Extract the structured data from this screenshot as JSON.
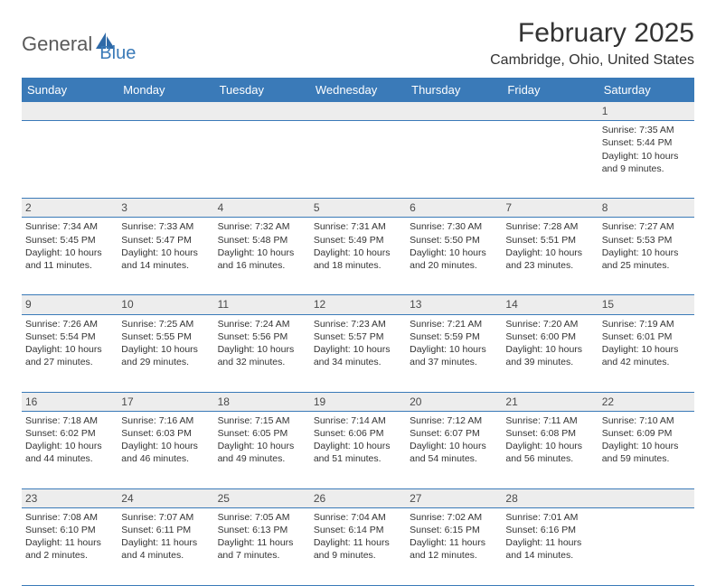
{
  "logo": {
    "word1": "General",
    "word2": "Blue",
    "icon_color": "#2f6aa8"
  },
  "header": {
    "title": "February 2025",
    "location": "Cambridge, Ohio, United States"
  },
  "colors": {
    "header_bg": "#3a7ab8",
    "daynum_bg": "#ededed",
    "rule": "#3a7ab8",
    "text": "#333333"
  },
  "weekdays": [
    "Sunday",
    "Monday",
    "Tuesday",
    "Wednesday",
    "Thursday",
    "Friday",
    "Saturday"
  ],
  "weeks": [
    [
      null,
      null,
      null,
      null,
      null,
      null,
      {
        "n": "1",
        "sr": "7:35 AM",
        "ss": "5:44 PM",
        "dh": "10",
        "dm": "9"
      }
    ],
    [
      {
        "n": "2",
        "sr": "7:34 AM",
        "ss": "5:45 PM",
        "dh": "10",
        "dm": "11"
      },
      {
        "n": "3",
        "sr": "7:33 AM",
        "ss": "5:47 PM",
        "dh": "10",
        "dm": "14"
      },
      {
        "n": "4",
        "sr": "7:32 AM",
        "ss": "5:48 PM",
        "dh": "10",
        "dm": "16"
      },
      {
        "n": "5",
        "sr": "7:31 AM",
        "ss": "5:49 PM",
        "dh": "10",
        "dm": "18"
      },
      {
        "n": "6",
        "sr": "7:30 AM",
        "ss": "5:50 PM",
        "dh": "10",
        "dm": "20"
      },
      {
        "n": "7",
        "sr": "7:28 AM",
        "ss": "5:51 PM",
        "dh": "10",
        "dm": "23"
      },
      {
        "n": "8",
        "sr": "7:27 AM",
        "ss": "5:53 PM",
        "dh": "10",
        "dm": "25"
      }
    ],
    [
      {
        "n": "9",
        "sr": "7:26 AM",
        "ss": "5:54 PM",
        "dh": "10",
        "dm": "27"
      },
      {
        "n": "10",
        "sr": "7:25 AM",
        "ss": "5:55 PM",
        "dh": "10",
        "dm": "29"
      },
      {
        "n": "11",
        "sr": "7:24 AM",
        "ss": "5:56 PM",
        "dh": "10",
        "dm": "32"
      },
      {
        "n": "12",
        "sr": "7:23 AM",
        "ss": "5:57 PM",
        "dh": "10",
        "dm": "34"
      },
      {
        "n": "13",
        "sr": "7:21 AM",
        "ss": "5:59 PM",
        "dh": "10",
        "dm": "37"
      },
      {
        "n": "14",
        "sr": "7:20 AM",
        "ss": "6:00 PM",
        "dh": "10",
        "dm": "39"
      },
      {
        "n": "15",
        "sr": "7:19 AM",
        "ss": "6:01 PM",
        "dh": "10",
        "dm": "42"
      }
    ],
    [
      {
        "n": "16",
        "sr": "7:18 AM",
        "ss": "6:02 PM",
        "dh": "10",
        "dm": "44"
      },
      {
        "n": "17",
        "sr": "7:16 AM",
        "ss": "6:03 PM",
        "dh": "10",
        "dm": "46"
      },
      {
        "n": "18",
        "sr": "7:15 AM",
        "ss": "6:05 PM",
        "dh": "10",
        "dm": "49"
      },
      {
        "n": "19",
        "sr": "7:14 AM",
        "ss": "6:06 PM",
        "dh": "10",
        "dm": "51"
      },
      {
        "n": "20",
        "sr": "7:12 AM",
        "ss": "6:07 PM",
        "dh": "10",
        "dm": "54"
      },
      {
        "n": "21",
        "sr": "7:11 AM",
        "ss": "6:08 PM",
        "dh": "10",
        "dm": "56"
      },
      {
        "n": "22",
        "sr": "7:10 AM",
        "ss": "6:09 PM",
        "dh": "10",
        "dm": "59"
      }
    ],
    [
      {
        "n": "23",
        "sr": "7:08 AM",
        "ss": "6:10 PM",
        "dh": "11",
        "dm": "2"
      },
      {
        "n": "24",
        "sr": "7:07 AM",
        "ss": "6:11 PM",
        "dh": "11",
        "dm": "4"
      },
      {
        "n": "25",
        "sr": "7:05 AM",
        "ss": "6:13 PM",
        "dh": "11",
        "dm": "7"
      },
      {
        "n": "26",
        "sr": "7:04 AM",
        "ss": "6:14 PM",
        "dh": "11",
        "dm": "9"
      },
      {
        "n": "27",
        "sr": "7:02 AM",
        "ss": "6:15 PM",
        "dh": "11",
        "dm": "12"
      },
      {
        "n": "28",
        "sr": "7:01 AM",
        "ss": "6:16 PM",
        "dh": "11",
        "dm": "14"
      },
      null
    ]
  ],
  "labels": {
    "sunrise": "Sunrise:",
    "sunset": "Sunset:",
    "daylight": "Daylight:",
    "hours": "hours",
    "and": "and",
    "minutes": "minutes."
  }
}
